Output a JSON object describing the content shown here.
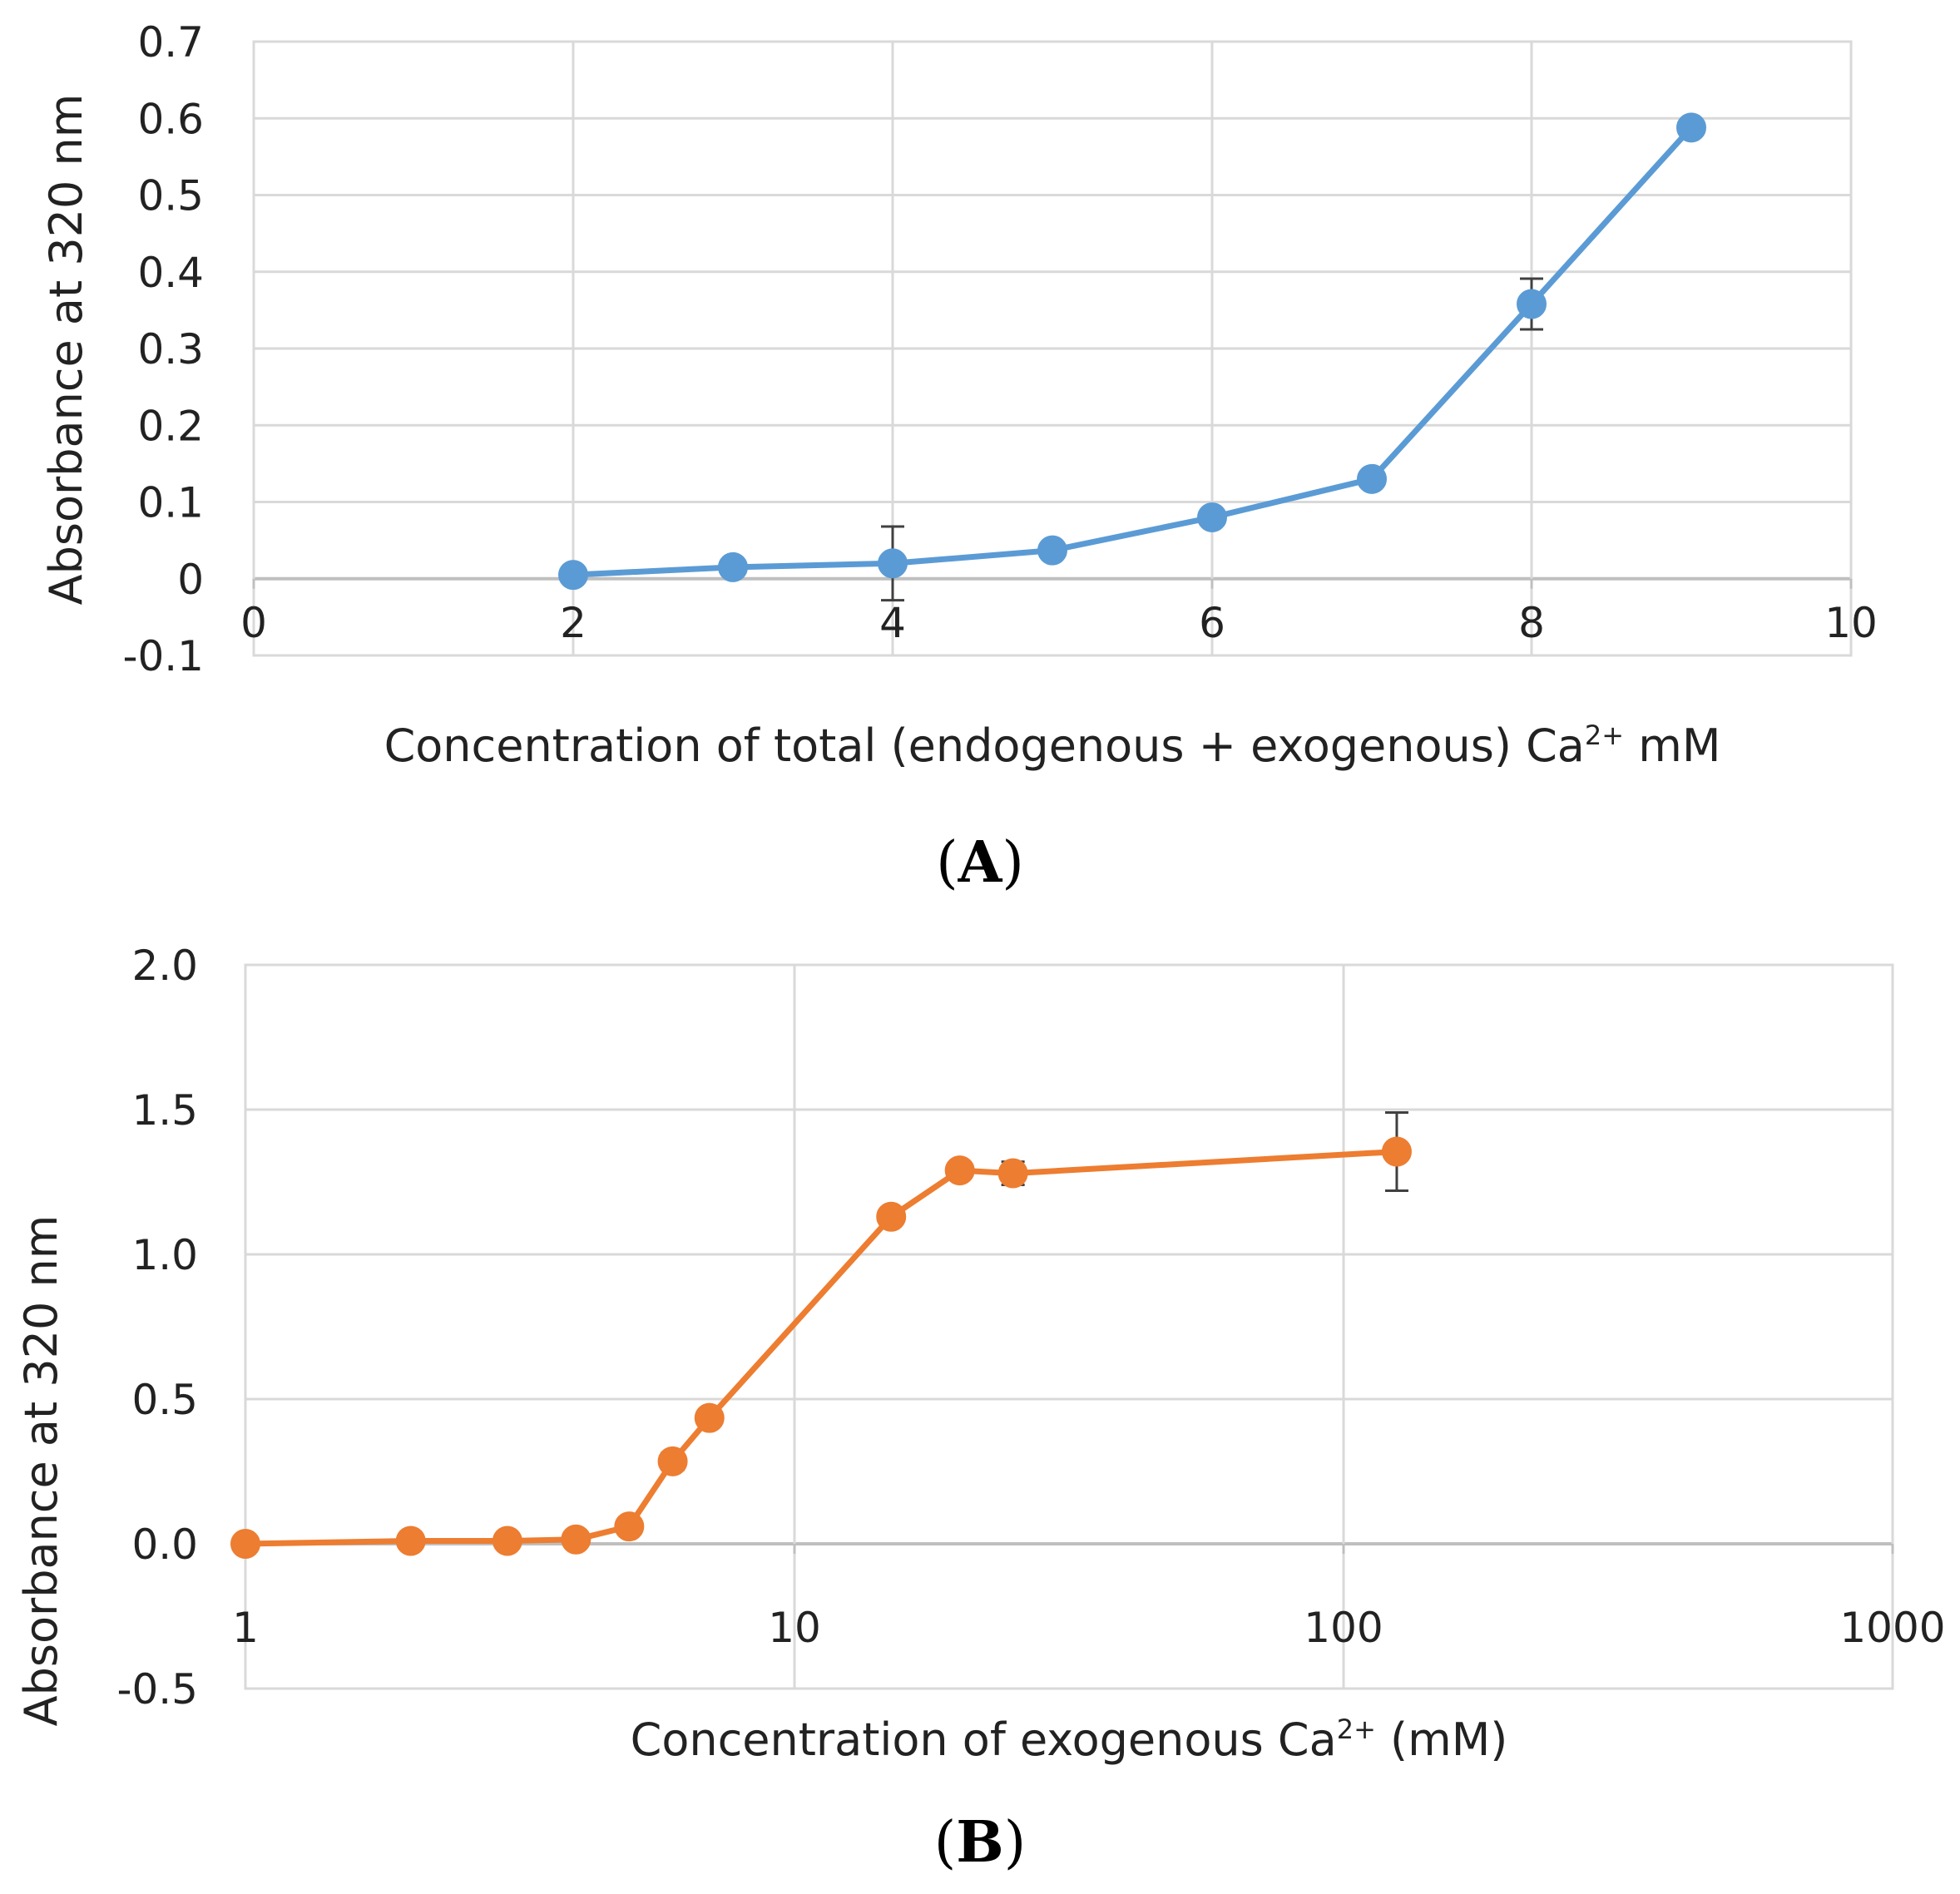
{
  "chart_data": [
    {
      "panel": "A",
      "type": "line",
      "title": "",
      "xlabel": "Concentration of total (endogenous + exogenous) Ca",
      "xlabel_sup": "2+",
      "xlabel_suffix": " mM",
      "ylabel": "Absorbance at 320 nm",
      "xlim": [
        0,
        10
      ],
      "ylim": [
        -0.1,
        0.7
      ],
      "xticks": [
        0,
        2,
        4,
        6,
        8,
        10
      ],
      "xtick_labels": [
        "0",
        "2",
        "4",
        "6",
        "8",
        "10"
      ],
      "yticks": [
        -0.1,
        0,
        0.1,
        0.2,
        0.3,
        0.4,
        0.5,
        0.6,
        0.7
      ],
      "ytick_labels": [
        "-0.1",
        "0",
        "0.1",
        "0.2",
        "0.3",
        "0.4",
        "0.5",
        "0.6",
        "0.7"
      ],
      "grid": true,
      "series": [
        {
          "name": "Absorbance",
          "color": "#5B9BD5",
          "x": [
            2,
            3,
            4,
            5,
            6,
            7,
            8,
            9
          ],
          "values": [
            0.005,
            0.015,
            0.02,
            0.037,
            0.08,
            0.13,
            0.358,
            0.588
          ],
          "errors": [
            0,
            0,
            0.048,
            0,
            0,
            0,
            0.033,
            0
          ]
        }
      ]
    },
    {
      "panel": "B",
      "type": "line",
      "title": "",
      "xscale": "log",
      "xlabel": "Concentration of exogenous Ca",
      "xlabel_sup": "2+",
      "xlabel_suffix": " (mM)",
      "ylabel": "Absorbance at 320 nm",
      "xlim": [
        1,
        1000
      ],
      "ylim": [
        -0.5,
        2.0
      ],
      "xticks": [
        1,
        10,
        100,
        1000
      ],
      "xtick_labels": [
        "1",
        "10",
        "100",
        "1000"
      ],
      "yticks": [
        -0.5,
        0.0,
        0.5,
        1.0,
        1.5,
        2.0
      ],
      "ytick_labels": [
        "-0.5",
        "0.0",
        "0.5",
        "1.0",
        "1.5",
        "2.0"
      ],
      "grid": true,
      "series": [
        {
          "name": "Absorbance",
          "color": "#ED7D31",
          "x": [
            1,
            2,
            3,
            4,
            5,
            6,
            7,
            15,
            20,
            25,
            125
          ],
          "values": [
            0.0,
            0.01,
            0.01,
            0.015,
            0.06,
            0.285,
            0.435,
            1.13,
            1.29,
            1.28,
            1.355
          ],
          "errors": [
            0,
            0,
            0,
            0,
            0,
            0.03,
            0,
            0,
            0,
            0.04,
            0.135
          ]
        }
      ]
    }
  ],
  "panel_labels": {
    "a_prefix": "(",
    "a": "A",
    "a_suffix": ")",
    "b_prefix": "(",
    "b": "B",
    "b_suffix": ")"
  }
}
